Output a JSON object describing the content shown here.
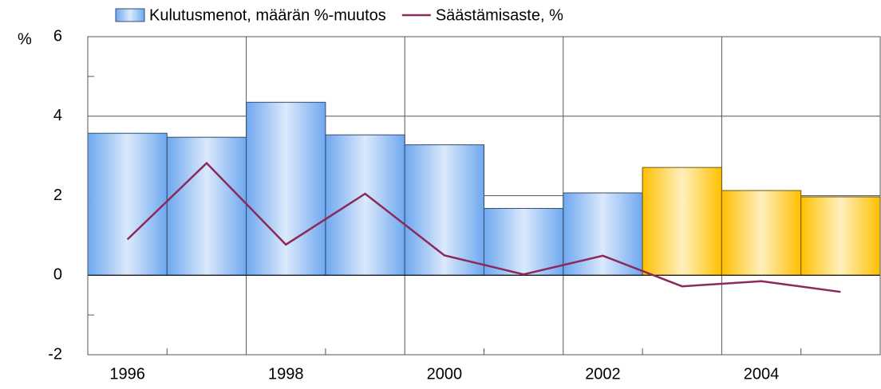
{
  "chart_data": {
    "type": "bar_line",
    "y_unit": "%",
    "categories": [
      "1996",
      null,
      "1998",
      null,
      "2000",
      null,
      "2002",
      null,
      "2004",
      null
    ],
    "series": [
      {
        "name": "Kulutusmenot, määrän %-muutos",
        "kind": "bar",
        "color": "#6fa8f0",
        "colors": [
          "#6fa8f0",
          "#6fa8f0",
          "#6fa8f0",
          "#6fa8f0",
          "#6fa8f0",
          "#6fa8f0",
          "#6fa8f0",
          "#ffc000",
          "#ffc000",
          "#ffc000"
        ],
        "values": [
          3.57,
          3.47,
          4.35,
          3.53,
          3.28,
          1.68,
          2.07,
          2.71,
          2.13,
          1.97
        ]
      },
      {
        "name": "Säästämisaste, %",
        "kind": "line",
        "color": "#8b2a5a",
        "values": [
          0.9,
          2.82,
          0.77,
          2.05,
          0.5,
          0.02,
          0.49,
          -0.28,
          -0.15,
          -0.42
        ]
      }
    ],
    "ylim": [
      -2,
      6
    ],
    "yticks": [
      -2,
      0,
      2,
      4,
      6
    ],
    "grid": true
  }
}
